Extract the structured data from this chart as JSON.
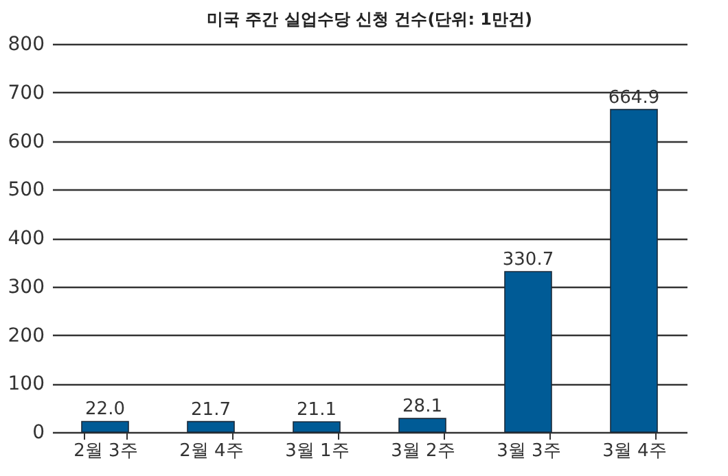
{
  "chart_data": {
    "type": "bar",
    "title": "미국 주간 실업수당 신청 건수(단위: 1만건)",
    "categories": [
      "2월 3주",
      "2월 4주",
      "3월 1주",
      "3월 2주",
      "3월 3주",
      "3월 4주"
    ],
    "values": [
      22.0,
      21.7,
      21.1,
      28.1,
      330.7,
      664.9
    ],
    "value_labels": [
      "22.0",
      "21.7",
      "21.1",
      "28.1",
      "330.7",
      "664.9"
    ],
    "color": "#005b96",
    "ylim": [
      0,
      800
    ],
    "yticks": [
      0,
      100,
      200,
      300,
      400,
      500,
      600,
      700,
      800
    ],
    "grid": "y"
  }
}
